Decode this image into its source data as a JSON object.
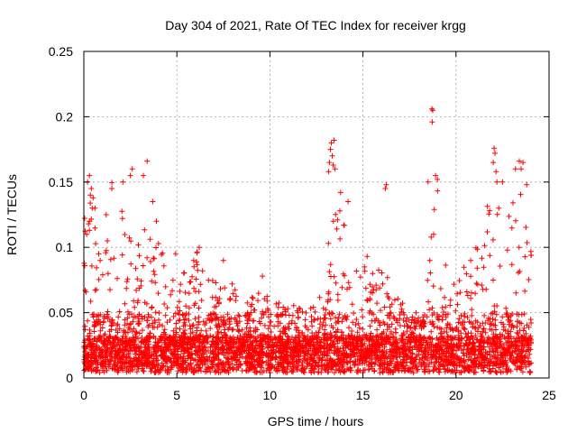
{
  "chart_data": {
    "type": "scatter",
    "title": "Day 304 of 2021, Rate Of TEC Index for receiver krgg",
    "xlabel": "GPS time / hours",
    "ylabel": "ROTI / TECUs",
    "xlim": [
      0,
      25
    ],
    "ylim": [
      0,
      0.25
    ],
    "xticks": [
      0,
      5,
      10,
      15,
      20,
      25
    ],
    "xtick_labels": [
      "0",
      "5",
      "10",
      "15",
      "20",
      "25"
    ],
    "yticks": [
      0,
      0.05,
      0.1,
      0.15,
      0.2,
      0.25
    ],
    "ytick_labels": [
      "0",
      "0.05",
      "0.1",
      "0.15",
      "0.2",
      "0.25"
    ],
    "grid": true,
    "marker": "plus",
    "color": "#ff0000",
    "series": [
      {
        "envelope_x": [
          0,
          0.5,
          1,
          1.5,
          2,
          2.5,
          3,
          3.5,
          4,
          4.5,
          5,
          5.5,
          6,
          6.5,
          7,
          7.5,
          8,
          8.5,
          9,
          9.5,
          10,
          10.5,
          11,
          11.5,
          12,
          12.5,
          13,
          13.5,
          14,
          14.5,
          15,
          15.5,
          16,
          16.5,
          17,
          17.5,
          18,
          18.5,
          19,
          19.5,
          20,
          20.5,
          21,
          21.5,
          22,
          22.5,
          23,
          23.5,
          24
        ],
        "envelope_y": [
          0.14,
          0.14,
          0.13,
          0.15,
          0.13,
          0.12,
          0.12,
          0.11,
          0.11,
          0.1,
          0.095,
          0.09,
          0.1,
          0.08,
          0.075,
          0.07,
          0.08,
          0.06,
          0.07,
          0.07,
          0.06,
          0.06,
          0.06,
          0.055,
          0.055,
          0.06,
          0.09,
          0.14,
          0.12,
          0.08,
          0.11,
          0.08,
          0.11,
          0.07,
          0.06,
          0.05,
          0.05,
          0.1,
          0.15,
          0.08,
          0.07,
          0.1,
          0.1,
          0.12,
          0.16,
          0.12,
          0.14,
          0.15,
          0.12
        ],
        "points_x": [
          0.05,
          0.15,
          0.2,
          0.3,
          0.35,
          0.5,
          0.4,
          0.6,
          1.2,
          1.5,
          2.1,
          2.5,
          2.6,
          3.4,
          3.2,
          3.7,
          3.9,
          0.25,
          0.3,
          0.45,
          13.2,
          13.25,
          13.3,
          13.35,
          13.4,
          13.45,
          13.15,
          13.5,
          13.8,
          14.2,
          16.2,
          16.25,
          18.5,
          18.7,
          18.72,
          18.75,
          18.9,
          19.0,
          18.8,
          22.0,
          22.05,
          22.1,
          22.15,
          22.2,
          22.3,
          22.5,
          23.2,
          23.4,
          23.5,
          23.6,
          23.8,
          0.8,
          6.2,
          5.9,
          7.5,
          9.6
        ],
        "points_y": [
          0.086,
          0.11,
          0.15,
          0.155,
          0.14,
          0.138,
          0.145,
          0.13,
          0.125,
          0.145,
          0.15,
          0.155,
          0.16,
          0.166,
          0.155,
          0.135,
          0.12,
          0.118,
          0.12,
          0.13,
          0.165,
          0.175,
          0.18,
          0.17,
          0.163,
          0.182,
          0.158,
          0.16,
          0.142,
          0.135,
          0.145,
          0.148,
          0.15,
          0.206,
          0.196,
          0.205,
          0.155,
          0.152,
          0.11,
          0.165,
          0.176,
          0.172,
          0.158,
          0.15,
          0.13,
          0.15,
          0.16,
          0.166,
          0.16,
          0.165,
          0.148,
          0.095,
          0.1,
          0.09,
          0.09,
          0.078
        ]
      }
    ]
  }
}
